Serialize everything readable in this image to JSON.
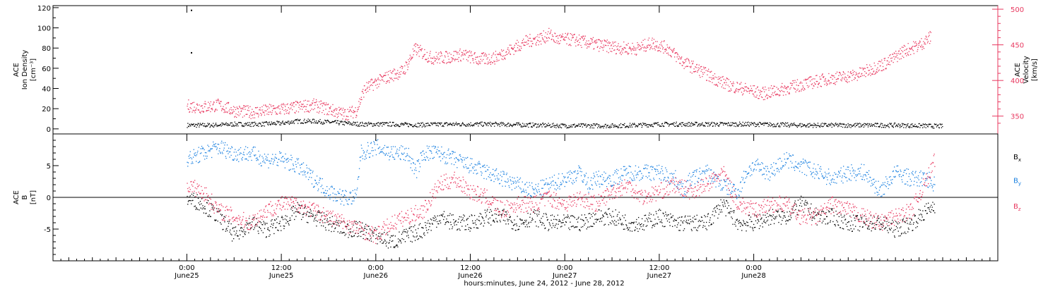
{
  "colors": {
    "density": "#000000",
    "velocity": "#e8385f",
    "bx": "#000000",
    "by": "#1a80e0",
    "bz": "#e8385f",
    "axis": "#000000"
  },
  "chart_data": [
    {
      "type": "scatter",
      "panel": "top",
      "left_label": [
        "ACE",
        "Ion Density",
        "[cm⁻³]"
      ],
      "right_label": [
        "ACE",
        "Velocity",
        "[km/s]"
      ],
      "left_ylim": [
        -5,
        122
      ],
      "left_ticks": [
        "0",
        "20",
        "40",
        "60",
        "80",
        "100",
        "120"
      ],
      "right_ylim": [
        325,
        505
      ],
      "right_ticks": [
        "350",
        "400",
        "450",
        "500"
      ],
      "series": [
        {
          "axis": "left",
          "color_key": "density",
          "points": [
            [
              0,
              4
            ],
            [
              3,
              4
            ],
            [
              6,
              5
            ],
            [
              9,
              5
            ],
            [
              12,
              6
            ],
            [
              14,
              8
            ],
            [
              16,
              8
            ],
            [
              18,
              7
            ],
            [
              20,
              6
            ],
            [
              22,
              5
            ],
            [
              24,
              5
            ],
            [
              26,
              5
            ],
            [
              28,
              4.5
            ],
            [
              30,
              4.5
            ],
            [
              33,
              5
            ],
            [
              36,
              5
            ],
            [
              39,
              5
            ],
            [
              42,
              4.5
            ],
            [
              45,
              4
            ],
            [
              48,
              3.5
            ],
            [
              51,
              3.5
            ],
            [
              54,
              3.5
            ],
            [
              57,
              4
            ],
            [
              60,
              5
            ],
            [
              63,
              5
            ],
            [
              66,
              5
            ],
            [
              69,
              5
            ],
            [
              72,
              5
            ],
            [
              75,
              4.5
            ],
            [
              78,
              4
            ],
            [
              81,
              4
            ],
            [
              84,
              4
            ],
            [
              87,
              4
            ],
            [
              90,
              4
            ],
            [
              93,
              3.5
            ],
            [
              96,
              3
            ]
          ],
          "spikes": [
            [
              0.5,
              118
            ],
            [
              0.5,
              76
            ]
          ]
        },
        {
          "axis": "right",
          "color_key": "velocity",
          "points": [
            [
              0,
              365
            ],
            [
              2,
              363
            ],
            [
              4,
              366
            ],
            [
              6,
              358
            ],
            [
              8,
              356
            ],
            [
              10,
              358
            ],
            [
              12,
              360
            ],
            [
              14,
              363
            ],
            [
              16,
              366
            ],
            [
              18,
              360
            ],
            [
              20,
              353
            ],
            [
              21.5,
              358
            ],
            [
              22.5,
              388
            ],
            [
              24,
              398
            ],
            [
              26,
              408
            ],
            [
              27.5,
              414
            ],
            [
              29,
              445
            ],
            [
              31,
              432
            ],
            [
              33,
              433
            ],
            [
              35,
              437
            ],
            [
              37,
              430
            ],
            [
              39,
              432
            ],
            [
              41,
              443
            ],
            [
              43,
              455
            ],
            [
              45,
              460
            ],
            [
              46,
              465
            ],
            [
              47,
              458
            ],
            [
              49,
              458
            ],
            [
              51,
              453
            ],
            [
              53,
              449
            ],
            [
              55,
              446
            ],
            [
              57,
              445
            ],
            [
              59,
              453
            ],
            [
              61,
              446
            ],
            [
              63,
              426
            ],
            [
              65,
              415
            ],
            [
              67,
              403
            ],
            [
              69,
              393
            ],
            [
              71,
              388
            ],
            [
              73,
              382
            ],
            [
              75,
              386
            ],
            [
              77,
              392
            ],
            [
              79,
              397
            ],
            [
              81,
              402
            ],
            [
              83,
              405
            ],
            [
              85,
              408
            ],
            [
              87,
              417
            ],
            [
              89,
              426
            ],
            [
              91,
              442
            ],
            [
              93,
              450
            ],
            [
              94.5,
              462
            ]
          ]
        }
      ]
    },
    {
      "type": "scatter",
      "panel": "bottom",
      "left_label": [
        "ACE",
        "B",
        "[nT]"
      ],
      "ylim": [
        -10,
        10
      ],
      "ticks": [
        "-5",
        "0",
        "5"
      ],
      "legend": [
        {
          "name": "B",
          "sub": "x",
          "color_key": "bx"
        },
        {
          "name": "B",
          "sub": "y",
          "color_key": "by"
        },
        {
          "name": "B",
          "sub": "z",
          "color_key": "bz"
        }
      ],
      "series": [
        {
          "name": "Bx",
          "color_key": "bx",
          "points": [
            [
              0,
              0
            ],
            [
              2,
              -1
            ],
            [
              4,
              -3
            ],
            [
              6,
              -6
            ],
            [
              8,
              -4
            ],
            [
              10,
              -5
            ],
            [
              12,
              -4
            ],
            [
              14,
              -2
            ],
            [
              16,
              -3
            ],
            [
              18,
              -4
            ],
            [
              20,
              -5
            ],
            [
              22,
              -5
            ],
            [
              24,
              -6
            ],
            [
              26,
              -7
            ],
            [
              28,
              -6
            ],
            [
              30,
              -5
            ],
            [
              32,
              -3
            ],
            [
              34,
              -4
            ],
            [
              36,
              -4
            ],
            [
              38,
              -3
            ],
            [
              40,
              -3
            ],
            [
              42,
              -4
            ],
            [
              44,
              -3
            ],
            [
              46,
              -4
            ],
            [
              48,
              -4
            ],
            [
              50,
              -4
            ],
            [
              52,
              -3
            ],
            [
              54,
              -3
            ],
            [
              56,
              -4
            ],
            [
              58,
              -4
            ],
            [
              60,
              -3
            ],
            [
              62,
              -4
            ],
            [
              64,
              -4
            ],
            [
              66,
              -4
            ],
            [
              68,
              -1
            ],
            [
              70,
              -4
            ],
            [
              72,
              -4
            ],
            [
              74,
              -3
            ],
            [
              76,
              -3
            ],
            [
              78,
              -1
            ],
            [
              80,
              -3
            ],
            [
              82,
              -3
            ],
            [
              84,
              -4
            ],
            [
              86,
              -4
            ],
            [
              88,
              -4
            ],
            [
              90,
              -5
            ],
            [
              92,
              -4
            ],
            [
              94,
              -2
            ],
            [
              95,
              -1
            ]
          ]
        },
        {
          "name": "By",
          "color_key": "by",
          "points": [
            [
              0,
              6
            ],
            [
              2,
              7
            ],
            [
              4,
              8
            ],
            [
              6,
              7
            ],
            [
              8,
              7
            ],
            [
              10,
              6
            ],
            [
              12,
              6
            ],
            [
              14,
              5
            ],
            [
              16,
              3
            ],
            [
              18,
              1
            ],
            [
              20,
              0
            ],
            [
              21.5,
              0
            ],
            [
              22,
              7
            ],
            [
              24,
              8
            ],
            [
              26,
              7
            ],
            [
              28,
              7
            ],
            [
              29,
              4
            ],
            [
              30,
              7
            ],
            [
              32,
              7
            ],
            [
              34,
              6
            ],
            [
              36,
              5
            ],
            [
              38,
              4
            ],
            [
              40,
              3
            ],
            [
              42,
              2
            ],
            [
              44,
              1
            ],
            [
              46,
              2
            ],
            [
              48,
              3
            ],
            [
              50,
              4
            ],
            [
              51,
              2
            ],
            [
              52,
              3
            ],
            [
              54,
              3
            ],
            [
              56,
              4
            ],
            [
              58,
              4
            ],
            [
              60,
              4
            ],
            [
              62,
              3
            ],
            [
              63,
              1
            ],
            [
              64,
              3
            ],
            [
              66,
              4
            ],
            [
              68,
              2
            ],
            [
              70,
              1
            ],
            [
              71,
              4
            ],
            [
              72,
              5
            ],
            [
              74,
              4
            ],
            [
              76,
              6
            ],
            [
              78,
              5
            ],
            [
              80,
              4
            ],
            [
              82,
              3
            ],
            [
              84,
              4
            ],
            [
              86,
              4
            ],
            [
              88,
              1
            ],
            [
              90,
              4
            ],
            [
              92,
              3
            ],
            [
              94,
              3
            ],
            [
              95,
              2
            ]
          ]
        },
        {
          "name": "Bz",
          "color_key": "bz",
          "points": [
            [
              0,
              2
            ],
            [
              2,
              1
            ],
            [
              4,
              -2
            ],
            [
              6,
              -3
            ],
            [
              8,
              -4
            ],
            [
              10,
              -2
            ],
            [
              12,
              -1
            ],
            [
              14,
              -1
            ],
            [
              16,
              -2
            ],
            [
              18,
              -3
            ],
            [
              20,
              -4
            ],
            [
              22,
              -5
            ],
            [
              24,
              -6
            ],
            [
              26,
              -4
            ],
            [
              28,
              -3
            ],
            [
              30,
              -2
            ],
            [
              32,
              2
            ],
            [
              34,
              3
            ],
            [
              36,
              1
            ],
            [
              38,
              0
            ],
            [
              40,
              -2
            ],
            [
              42,
              -1
            ],
            [
              44,
              -1
            ],
            [
              46,
              0
            ],
            [
              48,
              -1
            ],
            [
              50,
              0
            ],
            [
              52,
              -1
            ],
            [
              54,
              1
            ],
            [
              56,
              2
            ],
            [
              58,
              0
            ],
            [
              60,
              1
            ],
            [
              62,
              2
            ],
            [
              64,
              1
            ],
            [
              66,
              2
            ],
            [
              68,
              4
            ],
            [
              70,
              -1
            ],
            [
              72,
              -2
            ],
            [
              74,
              -1
            ],
            [
              76,
              -1
            ],
            [
              78,
              -3
            ],
            [
              80,
              -3
            ],
            [
              82,
              -1
            ],
            [
              84,
              -2
            ],
            [
              86,
              -3
            ],
            [
              88,
              -4
            ],
            [
              90,
              -3
            ],
            [
              92,
              -2
            ],
            [
              94,
              3
            ],
            [
              95,
              6
            ]
          ]
        }
      ]
    }
  ],
  "x_axis": {
    "range_hours": [
      -17,
      103
    ],
    "ticks": [
      {
        "hour": 0,
        "time": "0:00",
        "date": "June25"
      },
      {
        "hour": 12,
        "time": "12:00",
        "date": "June25"
      },
      {
        "hour": 24,
        "time": "0:00",
        "date": "June26"
      },
      {
        "hour": 36,
        "time": "12:00",
        "date": "June26"
      },
      {
        "hour": 48,
        "time": "0:00",
        "date": "June27"
      },
      {
        "hour": 60,
        "time": "12:00",
        "date": "June27"
      },
      {
        "hour": 72,
        "time": "0:00",
        "date": "June28"
      }
    ],
    "title": "hours:minutes, June 24, 2012 - June 28, 2012"
  }
}
